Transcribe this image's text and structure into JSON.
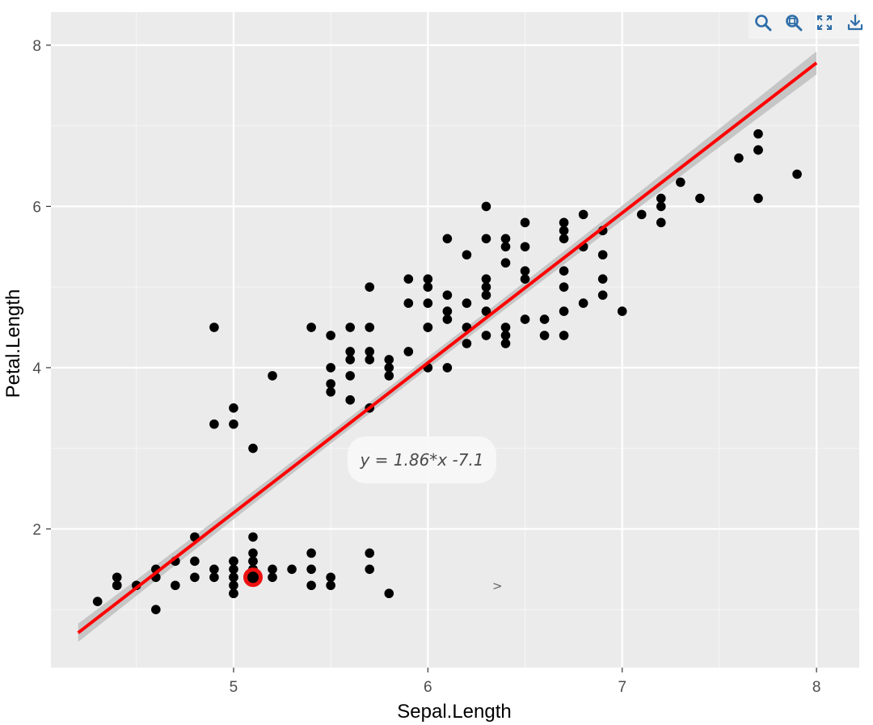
{
  "toolbar": {
    "icons": [
      "zoom-icon",
      "zoom-reset-icon",
      "fullscreen-icon",
      "download-icon"
    ],
    "color": "#2e6ea8"
  },
  "chart_data": {
    "type": "scatter",
    "xlabel": "Sepal.Length",
    "ylabel": "Petal.Length",
    "xlim": [
      4.06,
      8.22
    ],
    "ylim": [
      0.28,
      8.41
    ],
    "xticks": [
      5,
      6,
      7,
      8
    ],
    "yticks": [
      2,
      4,
      6,
      8
    ],
    "grid": true,
    "background": "#ebebeb",
    "point_color": "#000000",
    "highlight": {
      "x": 5.1,
      "y": 1.4,
      "color": "#ee1111"
    },
    "x": [
      4.3,
      4.4,
      4.4,
      4.4,
      4.5,
      4.6,
      4.6,
      4.6,
      4.7,
      4.7,
      4.8,
      4.8,
      4.8,
      4.9,
      4.9,
      4.9,
      5.0,
      5.0,
      5.0,
      5.0,
      5.0,
      5.0,
      5.0,
      5.1,
      5.1,
      5.1,
      5.1,
      5.1,
      5.1,
      5.1,
      5.1,
      5.2,
      5.2,
      5.3,
      5.4,
      5.4,
      5.4,
      5.5,
      5.5,
      5.0,
      5.8,
      5.7,
      5.7,
      4.9,
      5.0,
      5.0,
      5.1,
      5.2,
      5.4,
      5.5,
      5.5,
      5.5,
      5.5,
      5.6,
      5.6,
      5.6,
      5.6,
      5.6,
      5.7,
      5.7,
      5.7,
      5.7,
      5.8,
      5.8,
      5.8,
      5.9,
      5.9,
      5.9,
      6.0,
      6.0,
      6.0,
      6.0,
      6.0,
      6.0,
      6.1,
      6.1,
      6.1,
      6.1,
      6.1,
      6.2,
      6.2,
      6.2,
      6.2,
      6.3,
      6.3,
      6.3,
      6.3,
      6.3,
      6.3,
      6.3,
      6.4,
      6.4,
      6.4,
      6.4,
      6.4,
      6.4,
      6.5,
      6.5,
      6.5,
      6.5,
      6.5,
      6.6,
      6.6,
      6.7,
      6.7,
      6.7,
      6.7,
      6.7,
      6.7,
      6.7,
      6.8,
      6.8,
      6.8,
      6.9,
      6.9,
      6.9,
      6.9,
      7.0,
      7.1,
      7.2,
      7.2,
      7.2,
      7.3,
      7.4,
      7.6,
      7.7,
      7.7,
      7.7,
      7.7,
      7.9,
      5.7,
      5.1
    ],
    "y": [
      1.1,
      1.3,
      1.4,
      1.3,
      1.3,
      1.0,
      1.4,
      1.5,
      1.3,
      1.6,
      1.4,
      1.6,
      1.9,
      1.4,
      1.5,
      3.3,
      1.2,
      1.3,
      1.4,
      1.5,
      1.6,
      3.3,
      3.5,
      1.4,
      1.5,
      1.6,
      1.7,
      1.9,
      3.0,
      1.5,
      1.4,
      1.4,
      1.5,
      1.5,
      1.3,
      1.5,
      1.7,
      1.3,
      1.4,
      1.4,
      1.2,
      1.5,
      1.7,
      4.5,
      1.6,
      1.2,
      1.6,
      3.9,
      4.5,
      3.7,
      3.8,
      4.0,
      4.4,
      3.6,
      3.9,
      4.1,
      4.2,
      4.5,
      3.5,
      4.1,
      4.2,
      4.5,
      3.9,
      4.0,
      4.1,
      4.2,
      4.8,
      5.1,
      4.0,
      4.5,
      4.8,
      5.0,
      5.1,
      4.5,
      4.0,
      4.6,
      4.7,
      4.9,
      5.6,
      4.3,
      4.5,
      4.8,
      5.4,
      4.4,
      4.7,
      4.9,
      5.0,
      5.1,
      5.6,
      6.0,
      4.3,
      4.5,
      5.3,
      5.5,
      5.6,
      4.4,
      4.6,
      5.1,
      5.2,
      5.5,
      5.8,
      4.4,
      4.6,
      4.4,
      4.7,
      5.0,
      5.2,
      5.6,
      5.7,
      5.8,
      4.8,
      5.5,
      5.9,
      4.9,
      5.1,
      5.4,
      5.7,
      4.7,
      5.9,
      5.8,
      6.0,
      6.1,
      6.3,
      6.1,
      6.6,
      6.1,
      6.7,
      6.7,
      6.9,
      6.4,
      5.0,
      1.4
    ],
    "fit": {
      "method": "lm",
      "equation": "y = 1.86*x -7.1",
      "slope": 1.86,
      "intercept": -7.1,
      "x_range": [
        4.2,
        8.0
      ],
      "line_color": "#ff0000",
      "band_color": "#bdbdbd"
    },
    "annotation": ">"
  }
}
